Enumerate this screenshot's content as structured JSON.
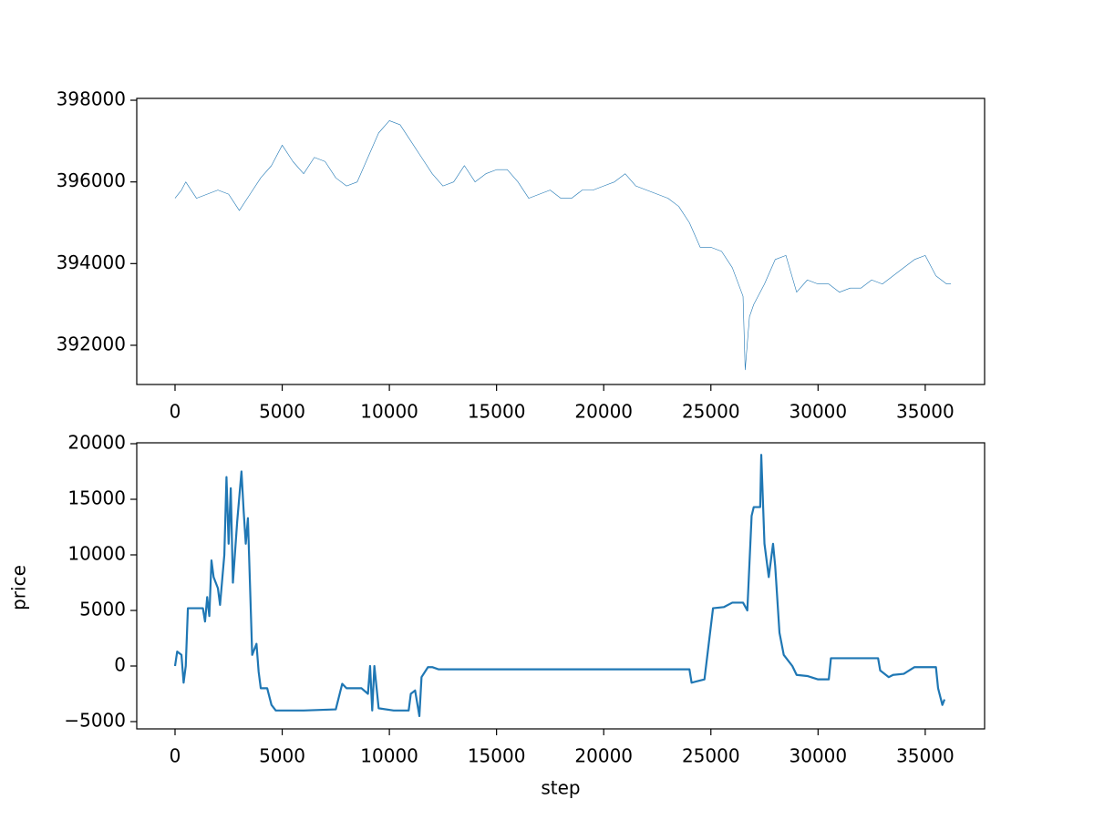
{
  "chart_data": [
    {
      "type": "line",
      "x": [
        0,
        300,
        500,
        1000,
        2000,
        2500,
        3000,
        3500,
        4000,
        4500,
        5000,
        5500,
        6000,
        6500,
        7000,
        7500,
        8000,
        8500,
        9000,
        9500,
        10000,
        10500,
        11000,
        11500,
        12000,
        12500,
        13000,
        13500,
        14000,
        14500,
        15000,
        15500,
        16000,
        16500,
        17000,
        17500,
        18000,
        18500,
        19000,
        19500,
        20000,
        20500,
        21000,
        21500,
        22000,
        22500,
        23000,
        23500,
        24000,
        24500,
        25000,
        25500,
        26000,
        26500,
        26600,
        26800,
        27000,
        27500,
        28000,
        28500,
        29000,
        29500,
        30000,
        30500,
        31000,
        31500,
        32000,
        32500,
        33000,
        33500,
        34000,
        34500,
        35000,
        35500,
        36000,
        36200
      ],
      "series": [
        {
          "color": "#1f77b4",
          "values": [
            395600,
            395800,
            396000,
            395600,
            395800,
            395700,
            395300,
            395700,
            396100,
            396400,
            396900,
            396500,
            396200,
            396600,
            396500,
            396100,
            395900,
            396000,
            396600,
            397200,
            397500,
            397400,
            397000,
            396600,
            396200,
            395900,
            396000,
            396400,
            396000,
            396200,
            396300,
            396300,
            396000,
            395600,
            395700,
            395800,
            395600,
            395600,
            395800,
            395800,
            395900,
            396000,
            396200,
            395900,
            395800,
            395700,
            395600,
            395400,
            395000,
            394400,
            394400,
            394300,
            393900,
            393200,
            391400,
            392700,
            393000,
            393500,
            394100,
            394200,
            393300,
            393600,
            393500,
            393500,
            393300,
            393400,
            393400,
            393600,
            393500,
            393700,
            393900,
            394100,
            394200,
            393700,
            393500,
            393500
          ]
        }
      ],
      "xlim": [
        -1786,
        37770
      ],
      "ylim": [
        391040,
        398045
      ],
      "xticks": [
        0,
        5000,
        10000,
        15000,
        20000,
        25000,
        30000,
        35000
      ],
      "yticks": [
        392000,
        394000,
        396000,
        398000
      ]
    },
    {
      "type": "line",
      "x": [
        0,
        100,
        300,
        400,
        500,
        600,
        1000,
        1300,
        1400,
        1500,
        1600,
        1700,
        1800,
        2000,
        2100,
        2300,
        2400,
        2500,
        2600,
        2700,
        2900,
        3100,
        3200,
        3300,
        3400,
        3600,
        3800,
        3900,
        4000,
        4300,
        4500,
        4700,
        6000,
        7500,
        7800,
        8000,
        8700,
        9000,
        9100,
        9200,
        9300,
        9500,
        10200,
        10900,
        11000,
        11200,
        11400,
        11500,
        11800,
        12000,
        12300,
        24000,
        24100,
        24700,
        24900,
        25100,
        25600,
        26000,
        26500,
        26700,
        26900,
        27000,
        27300,
        27350,
        27500,
        27700,
        27900,
        28000,
        28200,
        28400,
        28800,
        29000,
        29500,
        30000,
        30500,
        30600,
        32800,
        32900,
        33300,
        33500,
        34000,
        34500,
        35500,
        35600,
        35800,
        35900
      ],
      "series": [
        {
          "color": "#1f77b4",
          "values": [
            0,
            1300,
            1000,
            -1500,
            0,
            5200,
            5200,
            5200,
            4000,
            6200,
            4500,
            9500,
            8000,
            7000,
            5500,
            10000,
            17000,
            11000,
            16000,
            7500,
            13000,
            17500,
            14000,
            11000,
            13300,
            1000,
            2000,
            -500,
            -2000,
            -2000,
            -3500,
            -4000,
            -4000,
            -3900,
            -1600,
            -2000,
            -2000,
            -2500,
            0,
            -4000,
            0,
            -3800,
            -4000,
            -4000,
            -2500,
            -2200,
            -4500,
            -1000,
            -100,
            -100,
            -300,
            -300,
            -1500,
            -1200,
            2000,
            5200,
            5300,
            5700,
            5700,
            5000,
            13500,
            14300,
            14300,
            19000,
            11000,
            8000,
            11000,
            9000,
            3000,
            1000,
            0,
            -800,
            -900,
            -1200,
            -1200,
            700,
            700,
            -400,
            -1000,
            -800,
            -700,
            -100,
            -100,
            -2000,
            -3500,
            -3000
          ]
        }
      ],
      "xlim": [
        -1786,
        37770
      ],
      "ylim": [
        -5656,
        20082
      ],
      "xticks": [
        0,
        5000,
        10000,
        15000,
        20000,
        25000,
        30000,
        35000
      ],
      "yticks": [
        {
          "value": -5000,
          "label": "−5000"
        },
        0,
        5000,
        10000,
        15000,
        20000
      ],
      "xlabel": "step",
      "ylabel": "price"
    }
  ]
}
